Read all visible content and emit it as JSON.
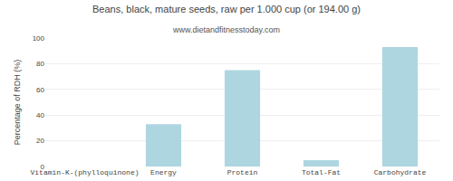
{
  "chart_data": {
    "type": "bar",
    "title": "Beans, black, mature seeds, raw per 1.000 cup (or 194.00 g)",
    "subtitle": "www.dietandfitnesstoday.com",
    "categories": [
      "Vitamin-K-(phylloquinone)",
      "Energy",
      "Protein",
      "Total-Fat",
      "Carbohydrate"
    ],
    "values": [
      0.0,
      33.0,
      75.0,
      5.0,
      93.0
    ],
    "color": "#aed6e0",
    "ylabel": "Percentage of RDH (%)",
    "ylim": [
      0,
      100
    ],
    "yticks": [
      0,
      20,
      40,
      60,
      80,
      100
    ],
    "grid": true
  }
}
